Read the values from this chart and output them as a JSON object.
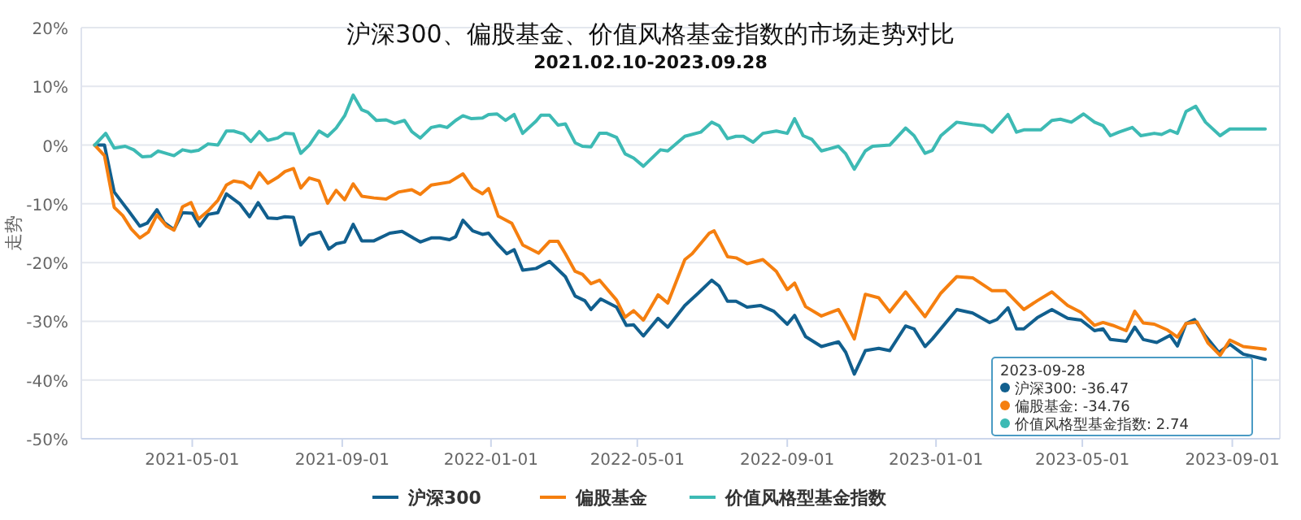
{
  "chart_data": {
    "type": "line",
    "title": "沪深300、偏股基金、价值风格基金指数的市场走势对比",
    "subtitle": "2021.02.10-2023.09.28",
    "ylabel": "走势",
    "xlim": [
      "2021-01-30",
      "2023-10-10"
    ],
    "xticks": [
      "2021-05-01",
      "2021-09-01",
      "2022-01-01",
      "2022-05-01",
      "2022-09-01",
      "2023-01-01",
      "2023-05-01",
      "2023-09-01"
    ],
    "ylim": [
      -50,
      20
    ],
    "yticks": [
      {
        "value": -50,
        "label": "-50%"
      },
      {
        "value": -40,
        "label": "-40%"
      },
      {
        "value": -30,
        "label": "-30%"
      },
      {
        "value": -20,
        "label": "-20%"
      },
      {
        "value": -10,
        "label": "-10%"
      },
      {
        "value": 0,
        "label": "0%"
      },
      {
        "value": 10,
        "label": "10%"
      },
      {
        "value": 20,
        "label": "20%"
      }
    ],
    "grid": "y",
    "legend": "bottom",
    "marker": "none",
    "line_style": "solid",
    "annotations": [
      "2023-09-28",
      "沪深300: -36.47",
      "偏股基金: -34.76",
      "价值风格型基金指数: 2.74"
    ],
    "series": [
      {
        "name": "沪深300",
        "color": "#115f8e",
        "x": [
          "2021-02-10",
          "2021-02-18",
          "2021-02-26",
          "2021-03-09",
          "2021-03-19",
          "2021-03-25",
          "2021-04-02",
          "2021-04-08",
          "2021-04-16",
          "2021-04-23",
          "2021-05-01",
          "2021-05-07",
          "2021-05-14",
          "2021-05-22",
          "2021-05-29",
          "2021-06-09",
          "2021-06-17",
          "2021-06-24",
          "2021-07-02",
          "2021-07-10",
          "2021-07-16",
          "2021-07-23",
          "2021-07-29",
          "2021-08-05",
          "2021-08-14",
          "2021-08-21",
          "2021-08-27",
          "2021-09-03",
          "2021-09-10",
          "2021-09-17",
          "2021-09-27",
          "2021-10-10",
          "2021-10-20",
          "2021-11-04",
          "2021-11-13",
          "2021-11-20",
          "2021-11-28",
          "2021-12-03",
          "2021-12-09",
          "2021-12-17",
          "2021-12-25",
          "2021-12-30",
          "2022-01-07",
          "2022-01-14",
          "2022-01-20",
          "2022-01-27",
          "2022-02-07",
          "2022-02-18",
          "2022-03-03",
          "2022-03-11",
          "2022-03-19",
          "2022-03-24",
          "2022-04-01",
          "2022-04-14",
          "2022-04-22",
          "2022-04-28",
          "2022-05-06",
          "2022-05-18",
          "2022-05-26",
          "2022-06-09",
          "2022-06-20",
          "2022-07-01",
          "2022-07-07",
          "2022-07-14",
          "2022-07-21",
          "2022-07-30",
          "2022-08-10",
          "2022-08-21",
          "2022-09-01",
          "2022-09-07",
          "2022-09-16",
          "2022-09-29",
          "2022-10-13",
          "2022-10-19",
          "2022-10-26",
          "2022-11-04",
          "2022-11-15",
          "2022-11-24",
          "2022-12-07",
          "2022-12-14",
          "2022-12-23",
          "2022-12-29",
          "2023-01-18",
          "2023-01-31",
          "2023-02-14",
          "2023-02-20",
          "2023-03-01",
          "2023-03-08",
          "2023-03-14",
          "2023-03-25",
          "2023-04-06",
          "2023-04-19",
          "2023-04-30",
          "2023-05-11",
          "2023-05-18",
          "2023-05-24",
          "2023-06-06",
          "2023-06-13",
          "2023-06-20",
          "2023-07-01",
          "2023-07-12",
          "2023-07-18",
          "2023-07-25",
          "2023-08-01",
          "2023-08-10",
          "2023-08-21",
          "2023-08-30",
          "2023-09-10",
          "2023-09-28"
        ],
        "values": [
          0,
          0,
          -8,
          -11,
          -13.8,
          -13.3,
          -11,
          -13.2,
          -14.4,
          -11.5,
          -11.6,
          -13.8,
          -11.8,
          -11.5,
          -8.3,
          -10,
          -12.2,
          -9.8,
          -12.4,
          -12.5,
          -12.2,
          -12.3,
          -17,
          -15.3,
          -14.8,
          -17.7,
          -16.8,
          -16.5,
          -13.5,
          -16.3,
          -16.3,
          -15,
          -14.7,
          -16.5,
          -15.8,
          -15.8,
          -16.1,
          -15.6,
          -12.8,
          -14.6,
          -15.2,
          -15,
          -17,
          -18.5,
          -17.8,
          -21.3,
          -21,
          -19.8,
          -22.4,
          -25.7,
          -26.5,
          -28,
          -26.2,
          -27.6,
          -30.7,
          -30.6,
          -32.5,
          -29.5,
          -31,
          -27.3,
          -25.2,
          -23,
          -24,
          -26.6,
          -26.6,
          -27.6,
          -27.3,
          -28.3,
          -30.5,
          -29,
          -32.6,
          -34.3,
          -33.5,
          -35.3,
          -39,
          -35,
          -34.6,
          -35,
          -30.8,
          -31.3,
          -34.3,
          -33,
          -28,
          -28.6,
          -30.2,
          -29.7,
          -27.7,
          -31.3,
          -31.3,
          -29.4,
          -28,
          -29.5,
          -29.8,
          -31.6,
          -31.3,
          -33.1,
          -33.4,
          -31,
          -33.1,
          -33.6,
          -32.4,
          -34.2,
          -30.4,
          -29.7,
          -32.5,
          -35.3,
          -33.9,
          -35.6,
          -36.47
        ]
      },
      {
        "name": "偏股基金",
        "color": "#f57f0f",
        "x": [
          "2021-02-10",
          "2021-02-18",
          "2021-02-26",
          "2021-03-05",
          "2021-03-12",
          "2021-03-19",
          "2021-03-26",
          "2021-04-02",
          "2021-04-10",
          "2021-04-16",
          "2021-04-23",
          "2021-04-30",
          "2021-05-06",
          "2021-05-14",
          "2021-05-22",
          "2021-05-29",
          "2021-06-04",
          "2021-06-12",
          "2021-06-18",
          "2021-06-25",
          "2021-07-02",
          "2021-07-10",
          "2021-07-16",
          "2021-07-23",
          "2021-07-29",
          "2021-08-05",
          "2021-08-13",
          "2021-08-20",
          "2021-08-27",
          "2021-09-03",
          "2021-09-10",
          "2021-09-17",
          "2021-09-27",
          "2021-10-07",
          "2021-10-17",
          "2021-10-28",
          "2021-11-04",
          "2021-11-13",
          "2021-11-28",
          "2021-12-09",
          "2021-12-17",
          "2021-12-25",
          "2021-12-30",
          "2022-01-07",
          "2022-01-18",
          "2022-01-27",
          "2022-02-09",
          "2022-02-18",
          "2022-02-25",
          "2022-03-03",
          "2022-03-11",
          "2022-03-17",
          "2022-03-24",
          "2022-03-31",
          "2022-04-14",
          "2022-04-21",
          "2022-04-28",
          "2022-05-06",
          "2022-05-18",
          "2022-05-26",
          "2022-06-09",
          "2022-06-15",
          "2022-06-29",
          "2022-07-03",
          "2022-07-14",
          "2022-07-21",
          "2022-07-30",
          "2022-08-12",
          "2022-08-23",
          "2022-09-01",
          "2022-09-07",
          "2022-09-16",
          "2022-09-29",
          "2022-10-13",
          "2022-10-19",
          "2022-10-26",
          "2022-11-04",
          "2022-11-15",
          "2022-11-24",
          "2022-12-07",
          "2022-12-23",
          "2023-01-05",
          "2023-01-18",
          "2023-01-31",
          "2023-02-16",
          "2023-02-27",
          "2023-03-14",
          "2023-03-25",
          "2023-04-06",
          "2023-04-19",
          "2023-04-30",
          "2023-05-11",
          "2023-05-18",
          "2023-05-26",
          "2023-06-06",
          "2023-06-13",
          "2023-06-20",
          "2023-06-29",
          "2023-07-10",
          "2023-07-18",
          "2023-07-25",
          "2023-08-03",
          "2023-08-12",
          "2023-08-22",
          "2023-08-30",
          "2023-09-10",
          "2023-09-28"
        ],
        "values": [
          0,
          -1.8,
          -10.6,
          -12,
          -14.3,
          -15.8,
          -14.8,
          -11.9,
          -13.8,
          -14.5,
          -10.5,
          -9.8,
          -12.6,
          -11.2,
          -9.4,
          -6.8,
          -6.1,
          -6.4,
          -7.3,
          -4.7,
          -6.5,
          -5.5,
          -4.5,
          -4,
          -7.3,
          -5.6,
          -6.1,
          -9.9,
          -7.7,
          -9.3,
          -6.6,
          -8.7,
          -9,
          -9.2,
          -8,
          -7.6,
          -8.4,
          -6.8,
          -6.3,
          -4.9,
          -7.3,
          -8.3,
          -7.4,
          -12.1,
          -13.3,
          -17,
          -18.4,
          -16.4,
          -16.4,
          -18.5,
          -21.5,
          -22,
          -23.6,
          -23,
          -26.4,
          -29.3,
          -28.2,
          -29.8,
          -25.5,
          -26.9,
          -19.5,
          -18.5,
          -15,
          -14.6,
          -19,
          -19.2,
          -20.2,
          -19.5,
          -21.5,
          -24.6,
          -23.5,
          -27.5,
          -29.1,
          -28,
          -30.2,
          -33,
          -25.4,
          -26,
          -28.4,
          -25,
          -29.2,
          -25.2,
          -22.4,
          -22.6,
          -24.8,
          -24.8,
          -28,
          -26.5,
          -25,
          -27.3,
          -28.5,
          -30.7,
          -30.2,
          -30.7,
          -31.6,
          -28.3,
          -30.3,
          -30.5,
          -31.5,
          -32.7,
          -30.4,
          -30.1,
          -33.7,
          -35.8,
          -33.2,
          -34.3,
          -34.76
        ]
      },
      {
        "name": "价值风格型基金指数",
        "color": "#3dbab4",
        "x": [
          "2021-02-10",
          "2021-02-19",
          "2021-02-26",
          "2021-03-07",
          "2021-03-14",
          "2021-03-21",
          "2021-03-28",
          "2021-04-03",
          "2021-04-16",
          "2021-04-23",
          "2021-04-30",
          "2021-05-06",
          "2021-05-14",
          "2021-05-22",
          "2021-05-29",
          "2021-06-04",
          "2021-06-12",
          "2021-06-18",
          "2021-06-25",
          "2021-07-02",
          "2021-07-10",
          "2021-07-16",
          "2021-07-23",
          "2021-07-29",
          "2021-08-05",
          "2021-08-13",
          "2021-08-20",
          "2021-08-27",
          "2021-09-03",
          "2021-09-10",
          "2021-09-17",
          "2021-09-22",
          "2021-09-29",
          "2021-10-07",
          "2021-10-14",
          "2021-10-22",
          "2021-10-28",
          "2021-11-04",
          "2021-11-13",
          "2021-11-20",
          "2021-11-26",
          "2021-12-03",
          "2021-12-09",
          "2021-12-16",
          "2021-12-25",
          "2021-12-30",
          "2022-01-06",
          "2022-01-13",
          "2022-01-20",
          "2022-01-27",
          "2022-02-07",
          "2022-02-11",
          "2022-02-18",
          "2022-02-25",
          "2022-03-03",
          "2022-03-11",
          "2022-03-17",
          "2022-03-24",
          "2022-03-31",
          "2022-04-06",
          "2022-04-14",
          "2022-04-21",
          "2022-04-28",
          "2022-05-06",
          "2022-05-20",
          "2022-05-26",
          "2022-06-09",
          "2022-06-22",
          "2022-07-01",
          "2022-07-07",
          "2022-07-14",
          "2022-07-21",
          "2022-07-27",
          "2022-08-04",
          "2022-08-12",
          "2022-08-23",
          "2022-09-01",
          "2022-09-07",
          "2022-09-14",
          "2022-09-21",
          "2022-09-29",
          "2022-10-13",
          "2022-10-19",
          "2022-10-26",
          "2022-11-04",
          "2022-11-10",
          "2022-11-24",
          "2022-12-07",
          "2022-12-14",
          "2022-12-23",
          "2022-12-29",
          "2023-01-05",
          "2023-01-18",
          "2023-01-31",
          "2023-02-09",
          "2023-02-16",
          "2023-03-01",
          "2023-03-08",
          "2023-03-14",
          "2023-03-28",
          "2023-04-06",
          "2023-04-13",
          "2023-04-22",
          "2023-05-02",
          "2023-05-11",
          "2023-05-18",
          "2023-05-24",
          "2023-05-31",
          "2023-06-11",
          "2023-06-18",
          "2023-06-29",
          "2023-07-05",
          "2023-07-12",
          "2023-07-18",
          "2023-07-25",
          "2023-08-02",
          "2023-08-10",
          "2023-08-22",
          "2023-08-30",
          "2023-09-28"
        ],
        "values": [
          0,
          2,
          -0.5,
          -0.2,
          -0.8,
          -2,
          -1.9,
          -1,
          -1.8,
          -0.8,
          -1.1,
          -0.9,
          0.2,
          0,
          2.4,
          2.4,
          1.9,
          0.6,
          2.3,
          0.8,
          1.2,
          2,
          1.9,
          -1.4,
          0,
          2.4,
          1.5,
          2.9,
          5,
          8.5,
          6,
          5.6,
          4.2,
          4.3,
          3.7,
          4.2,
          2.3,
          1.2,
          3,
          3.3,
          3,
          4.2,
          5,
          4.5,
          4.6,
          5.2,
          5.3,
          4.2,
          5.2,
          2,
          4.1,
          5.1,
          5.1,
          3.4,
          3.6,
          0.4,
          -0.2,
          -0.3,
          2,
          2,
          1.3,
          -1.5,
          -2.2,
          -3.6,
          -0.8,
          -1,
          1.5,
          2.2,
          3.9,
          3.3,
          1.1,
          1.5,
          1.5,
          0.5,
          2,
          2.4,
          2,
          4.5,
          1.6,
          1,
          -1,
          -0.2,
          -1.5,
          -4.1,
          -1,
          -0.2,
          0,
          2.9,
          1.6,
          -1.4,
          -0.9,
          1.6,
          3.9,
          3.5,
          3.3,
          2.2,
          5.2,
          2.2,
          2.6,
          2.6,
          4.2,
          4.4,
          3.9,
          5.3,
          3.9,
          3.3,
          1.6,
          2.2,
          3,
          1.6,
          2,
          1.8,
          2.5,
          2,
          5.7,
          6.6,
          3.9,
          1.6,
          2.74,
          2.74
        ]
      }
    ]
  }
}
